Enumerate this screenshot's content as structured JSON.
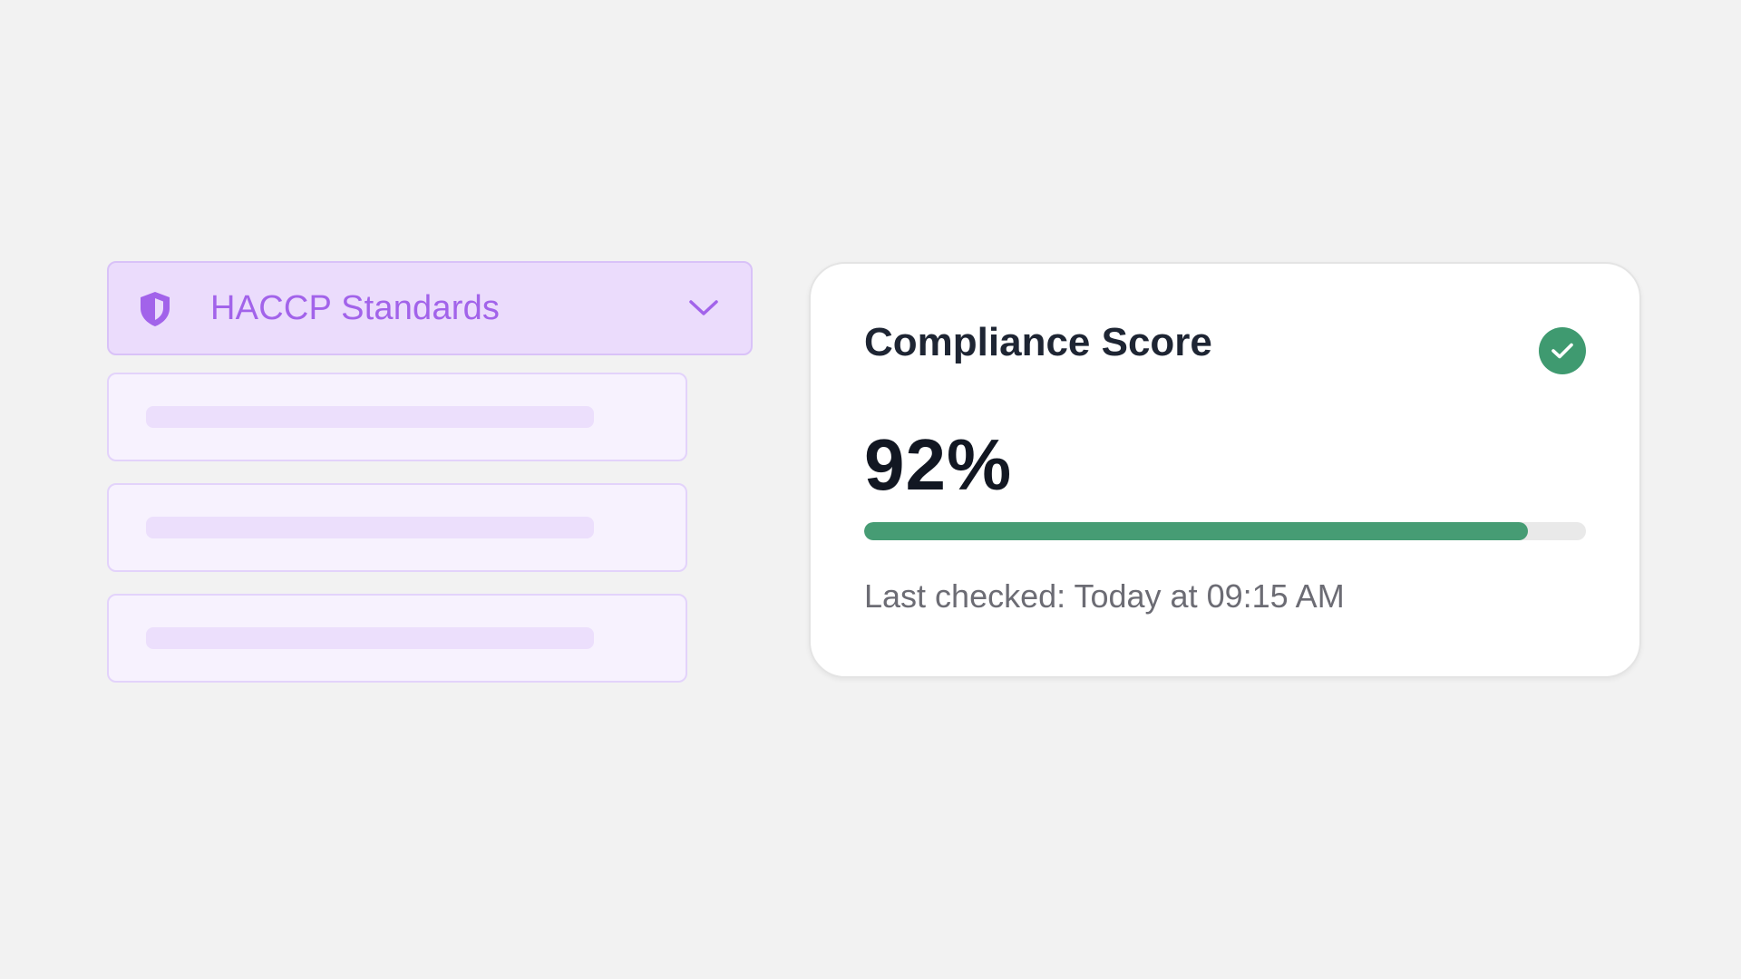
{
  "standards_dropdown": {
    "icon": "shield-icon",
    "label": "HACCP Standards",
    "chevron_icon": "chevron-down-icon",
    "accent_color": "#a263ea"
  },
  "skeleton_items": [
    {
      "state": "loading"
    },
    {
      "state": "loading"
    },
    {
      "state": "loading"
    }
  ],
  "compliance_card": {
    "title": "Compliance Score",
    "status_icon": "check-circle-icon",
    "status_color": "#3f9a70",
    "score_text": "92%",
    "score_fraction": 0.92,
    "last_checked": "Last checked: Today at 09:15 AM"
  }
}
